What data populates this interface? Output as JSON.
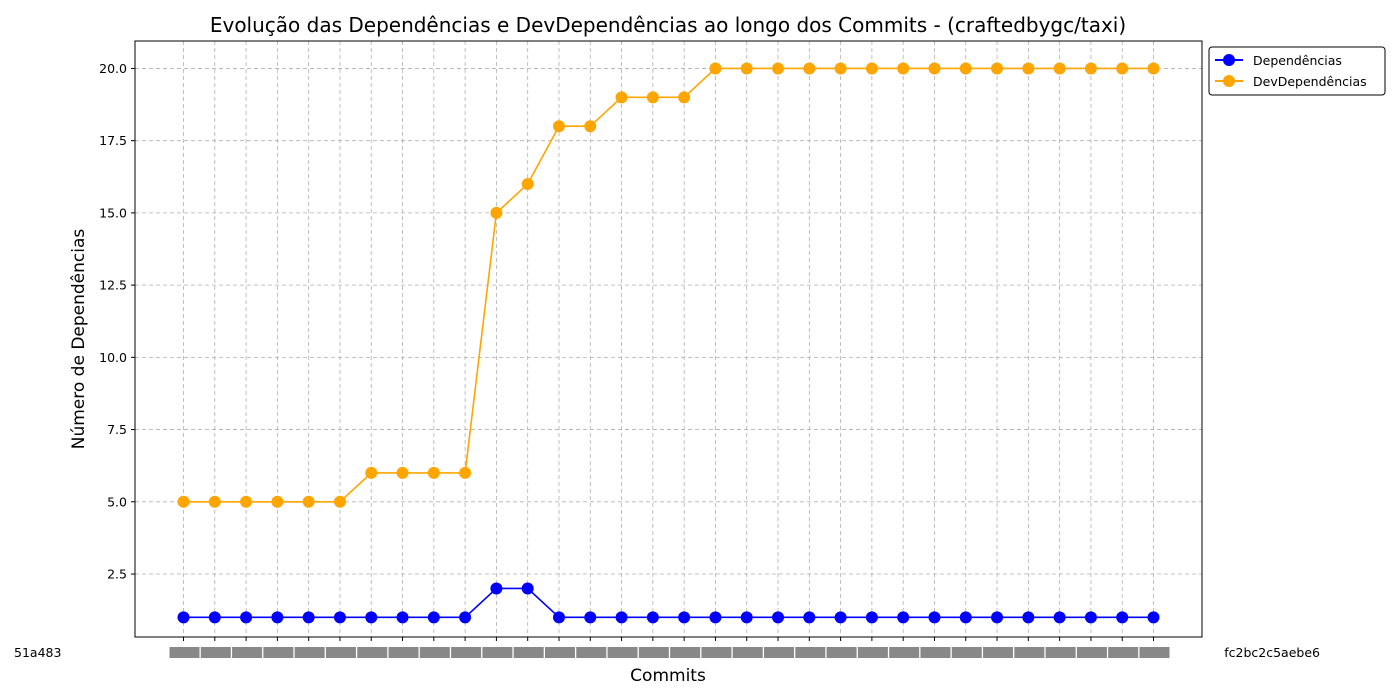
{
  "chart_data": {
    "type": "line",
    "title": "Evolução das Dependências e DevDependências ao longo dos Commits - (craftedbygc/taxi)",
    "xlabel": "Commits",
    "ylabel": "Número de Dependências",
    "ylim": [
      0.32,
      20.95
    ],
    "yticks": [
      2.5,
      5.0,
      7.5,
      10.0,
      12.5,
      15.0,
      17.5,
      20.0
    ],
    "ytick_labels": [
      "2.5",
      "5.0",
      "7.5",
      "10.0",
      "12.5",
      "15.0",
      "17.5",
      "20.0"
    ],
    "grid": true,
    "legend_position": "top-right (outside plot)",
    "x_first_label": "51a483",
    "x_last_label": "fc2bc2c5aebe6",
    "categories_count": 32,
    "series": [
      {
        "name": "Dependências",
        "color": "#0000ff",
        "marker": "circle",
        "values": [
          1,
          1,
          1,
          1,
          1,
          1,
          1,
          1,
          1,
          1,
          2,
          2,
          1,
          1,
          1,
          1,
          1,
          1,
          1,
          1,
          1,
          1,
          1,
          1,
          1,
          1,
          1,
          1,
          1,
          1,
          1,
          1
        ]
      },
      {
        "name": "DevDependências",
        "color": "#ffa500",
        "marker": "circle",
        "values": [
          5,
          5,
          5,
          5,
          5,
          5,
          6,
          6,
          6,
          6,
          15,
          16,
          18,
          18,
          19,
          19,
          19,
          20,
          20,
          20,
          20,
          20,
          20,
          20,
          20,
          20,
          20,
          20,
          20,
          20,
          20,
          20
        ]
      }
    ]
  }
}
